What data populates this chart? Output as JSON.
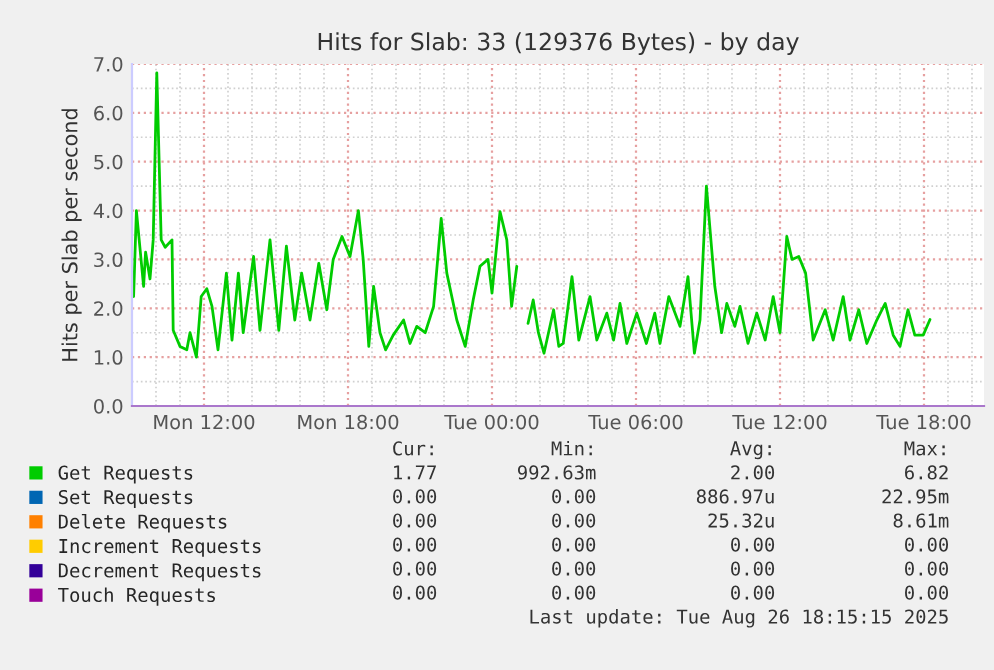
{
  "chart_data": {
    "type": "line",
    "title": "Hits for Slab: 33 (129376 Bytes) - by day",
    "ylabel": "Hits per Slab per second",
    "xlim": [
      "2025-08-25T09:00",
      "2025-08-26T20:30"
    ],
    "xticks": [
      {
        "value": "2025-08-25T12:00",
        "label": "Mon 12:00"
      },
      {
        "value": "2025-08-25T18:00",
        "label": "Mon 18:00"
      },
      {
        "value": "2025-08-26T00:00",
        "label": "Tue 00:00"
      },
      {
        "value": "2025-08-26T06:00",
        "label": "Tue 06:00"
      },
      {
        "value": "2025-08-26T12:00",
        "label": "Tue 12:00"
      },
      {
        "value": "2025-08-26T18:00",
        "label": "Tue 18:00"
      }
    ],
    "ylim": [
      0,
      7
    ],
    "yticks": [
      {
        "value": 0,
        "label": "0.0"
      },
      {
        "value": 1,
        "label": "1.0"
      },
      {
        "value": 2,
        "label": "2.0"
      },
      {
        "value": 3,
        "label": "3.0"
      },
      {
        "value": 4,
        "label": "4.0"
      },
      {
        "value": 5,
        "label": "5.0"
      },
      {
        "value": 6,
        "label": "6.0"
      },
      {
        "value": 7,
        "label": "7.0"
      }
    ],
    "grid": true,
    "legend": "bottom",
    "marker": "none",
    "line_style": "solid",
    "series": [
      {
        "name": "Get Requests",
        "color": "#00cc00",
        "x": [
          "2025-08-25T09:04",
          "2025-08-25T09:11",
          "2025-08-25T09:29",
          "2025-08-25T09:34",
          "2025-08-25T09:45",
          "2025-08-25T09:53",
          "2025-08-25T10:02",
          "2025-08-25T10:13",
          "2025-08-25T10:23",
          "2025-08-25T10:40",
          "2025-08-25T10:43",
          "2025-08-25T11:00",
          "2025-08-25T11:17",
          "2025-08-25T11:25",
          "2025-08-25T11:41",
          "2025-08-25T11:53",
          "2025-08-25T12:07",
          "2025-08-25T12:20",
          "2025-08-25T12:35",
          "2025-08-25T12:56",
          "2025-08-25T13:10",
          "2025-08-25T13:26",
          "2025-08-25T13:38",
          "2025-08-25T14:04",
          "2025-08-25T14:20",
          "2025-08-25T14:45",
          "2025-08-25T15:07",
          "2025-08-25T15:26",
          "2025-08-25T15:47",
          "2025-08-25T16:04",
          "2025-08-25T16:25",
          "2025-08-25T16:47",
          "2025-08-25T17:07",
          "2025-08-25T17:23",
          "2025-08-25T17:45",
          "2025-08-25T18:05",
          "2025-08-25T18:26",
          "2025-08-25T18:38",
          "2025-08-25T18:52",
          "2025-08-25T19:04",
          "2025-08-25T19:20",
          "2025-08-25T19:34",
          "2025-08-25T19:53",
          "2025-08-25T20:19",
          "2025-08-25T20:35",
          "2025-08-25T20:52",
          "2025-08-25T21:13",
          "2025-08-25T21:34",
          "2025-08-25T21:53",
          "2025-08-25T22:07",
          "2025-08-25T22:32",
          "2025-08-25T22:53",
          "2025-08-25T23:13",
          "2025-08-25T23:30",
          "2025-08-25T23:50",
          "2025-08-26T00:00",
          "2025-08-26T00:20",
          "2025-08-26T00:37",
          "2025-08-26T00:49",
          "2025-08-26T01:02",
          "2025-08-26T01:15",
          "2025-08-26T01:30",
          "2025-08-26T01:43",
          "2025-08-26T01:56",
          "2025-08-26T02:10",
          "2025-08-26T02:34",
          "2025-08-26T02:47",
          "2025-08-26T02:58",
          "2025-08-26T03:20",
          "2025-08-26T03:37",
          "2025-08-26T04:05",
          "2025-08-26T04:22",
          "2025-08-26T04:47",
          "2025-08-26T05:04",
          "2025-08-26T05:20",
          "2025-08-26T05:37",
          "2025-08-26T06:02",
          "2025-08-26T06:26",
          "2025-08-26T06:47",
          "2025-08-26T07:00",
          "2025-08-26T07:22",
          "2025-08-26T07:50",
          "2025-08-26T08:10",
          "2025-08-26T08:26",
          "2025-08-26T08:40",
          "2025-08-26T08:56",
          "2025-08-26T09:17",
          "2025-08-26T09:34",
          "2025-08-26T09:47",
          "2025-08-26T10:07",
          "2025-08-26T10:20",
          "2025-08-26T10:40",
          "2025-08-26T11:02",
          "2025-08-26T11:23",
          "2025-08-26T11:43",
          "2025-08-26T12:00",
          "2025-08-26T12:17",
          "2025-08-26T12:30",
          "2025-08-26T12:47",
          "2025-08-26T13:04",
          "2025-08-26T13:23",
          "2025-08-26T13:53",
          "2025-08-26T14:13",
          "2025-08-26T14:38",
          "2025-08-26T14:55",
          "2025-08-26T15:17",
          "2025-08-26T15:37",
          "2025-08-26T16:02",
          "2025-08-26T16:23",
          "2025-08-26T16:43",
          "2025-08-26T17:00",
          "2025-08-26T17:20",
          "2025-08-26T17:37",
          "2025-08-26T17:58",
          "2025-08-26T18:15"
        ],
        "values": [
          2.24,
          4.0,
          2.45,
          3.15,
          2.6,
          3.4,
          6.82,
          3.4,
          3.25,
          3.4,
          1.55,
          1.22,
          1.15,
          1.5,
          1.0,
          2.24,
          2.4,
          2.04,
          1.15,
          2.72,
          1.35,
          2.72,
          1.5,
          3.06,
          1.55,
          3.4,
          1.55,
          3.27,
          1.76,
          2.72,
          1.76,
          2.92,
          1.97,
          3.0,
          3.47,
          3.06,
          4.0,
          3.0,
          1.22,
          2.45,
          1.5,
          1.15,
          1.45,
          1.76,
          1.28,
          1.63,
          1.5,
          2.04,
          3.84,
          2.72,
          1.76,
          1.22,
          2.17,
          2.86,
          3.0,
          2.31,
          3.98,
          3.4,
          2.04,
          2.86,
          null,
          1.69,
          2.17,
          1.5,
          1.08,
          1.97,
          1.22,
          1.28,
          2.65,
          1.35,
          2.24,
          1.35,
          1.9,
          1.35,
          2.1,
          1.28,
          1.9,
          1.28,
          1.9,
          1.28,
          2.24,
          1.63,
          2.65,
          1.08,
          1.76,
          4.5,
          2.45,
          1.5,
          2.1,
          1.63,
          2.04,
          1.28,
          1.9,
          1.35,
          2.24,
          1.5,
          3.47,
          3.0,
          3.06,
          2.72,
          1.35,
          1.97,
          1.35,
          2.24,
          1.35,
          1.97,
          1.28,
          1.76,
          2.1,
          1.45,
          1.22,
          1.97,
          1.45,
          1.45,
          1.77
        ]
      },
      {
        "name": "Set Requests",
        "color": "#0066b3"
      },
      {
        "name": "Delete Requests",
        "color": "#ff8000"
      },
      {
        "name": "Increment Requests",
        "color": "#ffcc00"
      },
      {
        "name": "Decrement Requests",
        "color": "#330099"
      },
      {
        "name": "Touch Requests",
        "color": "#990099"
      }
    ],
    "annotations": [
      "Cur:",
      "Min:",
      "Avg:",
      "Max:",
      "1.77",
      "992.63m",
      "2.00",
      "6.82",
      "0.00",
      "0.00",
      "886.97u",
      "22.95m",
      "0.00",
      "0.00",
      "25.32u",
      "8.61m",
      "0.00",
      "0.00",
      "0.00",
      "0.00",
      "0.00",
      "0.00",
      "0.00",
      "0.00",
      "0.00",
      "0.00",
      "0.00",
      "0.00",
      "Last update: Tue Aug 26 18:15:15 2025"
    ]
  }
}
